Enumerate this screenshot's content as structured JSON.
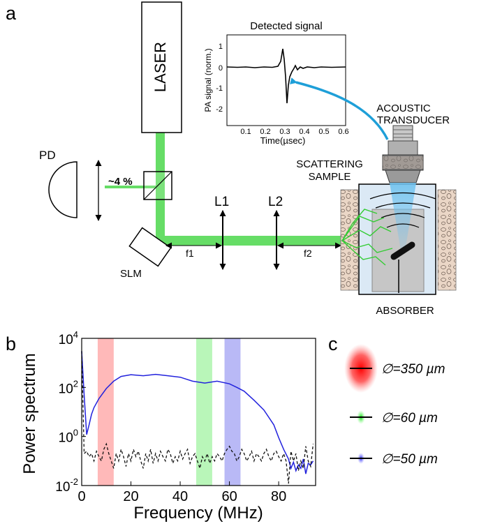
{
  "panels": {
    "a": "a",
    "b": "b",
    "c": "c"
  },
  "setup": {
    "laser": "LASER",
    "pd": "PD",
    "split": "~4 %",
    "slm": "SLM",
    "l1": "L1",
    "l2": "L2",
    "f1": "f1",
    "f2": "f2",
    "transducer_line1": "ACOUSTIC",
    "transducer_line2": "TRANSDUCER",
    "sample_line1": "SCATTERING",
    "sample_line2": "SAMPLE",
    "absorber": "ABSORBER",
    "colors": {
      "beam": "#66dd66",
      "arrow": "#1e9fd8",
      "tissue": "#ead6c6",
      "water": "#dbe9f5"
    }
  },
  "inset": {
    "title": "Detected signal",
    "xlabel": "Time(µsec)",
    "ylabel": "PA signal (norm.)",
    "xticks": [
      "0.1",
      "0.2",
      "0.3",
      "0.4",
      "0.5",
      "0.6"
    ],
    "yticks": [
      "1",
      "0",
      "-1",
      "-2"
    ]
  },
  "legend": {
    "items": [
      {
        "label": "∅=350 µm",
        "color": "#ff2020"
      },
      {
        "label": "∅=60 µm",
        "color": "#22cc22"
      },
      {
        "label": "∅=50 µm",
        "color": "#3030ff"
      }
    ]
  },
  "chart_data": {
    "type": "line",
    "xlabel": "Frequency (MHz)",
    "ylabel": "Power spectrum",
    "xlim": [
      0,
      95
    ],
    "ylim_log10": [
      -2,
      4
    ],
    "xticks": [
      "0",
      "20",
      "40",
      "60",
      "80"
    ],
    "ytick_exponents": [
      "4",
      "2",
      "0",
      "-2"
    ],
    "bands": [
      {
        "from": 6.5,
        "to": 13,
        "color": "#ff8080"
      },
      {
        "from": 46.5,
        "to": 53,
        "color": "#80ee80"
      },
      {
        "from": 58,
        "to": 64.5,
        "color": "#8080ee"
      }
    ],
    "series": [
      {
        "color": "#2222dd",
        "dash": false,
        "x": [
          0,
          1,
          2,
          3,
          4,
          5,
          7,
          10,
          13,
          16,
          20,
          25,
          30,
          35,
          40,
          45,
          50,
          55,
          60,
          63,
          66,
          70,
          74,
          78,
          80,
          82,
          84,
          85,
          86,
          87,
          88,
          89,
          90,
          91,
          92,
          93,
          94
        ],
        "y": [
          3000,
          50,
          1.2,
          3,
          8,
          15,
          35,
          90,
          180,
          280,
          330,
          300,
          340,
          300,
          260,
          180,
          150,
          180,
          140,
          100,
          70,
          30,
          12,
          3,
          0.9,
          0.3,
          0.12,
          0.05,
          0.09,
          0.04,
          0.07,
          0.05,
          0.12,
          0.03,
          0.08,
          0.07,
          0.1
        ]
      },
      {
        "color": "#111111",
        "dash": true,
        "x": [
          0,
          1,
          2,
          3,
          4,
          5,
          6,
          7,
          8,
          9,
          10,
          11,
          12,
          13,
          14,
          15,
          16,
          17,
          18,
          19,
          20,
          21,
          22,
          23,
          24,
          25,
          26,
          27,
          28,
          29,
          30,
          31,
          32,
          33,
          34,
          35,
          36,
          37,
          38,
          39,
          40,
          41,
          42,
          43,
          44,
          45,
          46,
          47,
          48,
          49,
          50,
          51,
          52,
          53,
          54,
          55,
          56,
          57,
          58,
          59,
          60,
          61,
          62,
          63,
          64,
          65,
          66,
          67,
          68,
          69,
          70,
          71,
          72,
          73,
          74,
          75,
          76,
          77,
          78,
          79,
          80,
          81,
          82,
          83,
          84,
          85,
          86,
          87,
          88,
          89,
          90,
          91,
          92,
          93,
          94
        ],
        "y": [
          3000,
          0.2,
          0.25,
          0.15,
          0.2,
          0.1,
          0.25,
          0.15,
          0.1,
          0.3,
          0.5,
          0.2,
          0.1,
          0.05,
          0.2,
          0.1,
          0.3,
          0.15,
          0.06,
          0.2,
          0.1,
          0.3,
          0.15,
          0.25,
          0.1,
          0.05,
          0.2,
          0.1,
          0.3,
          0.08,
          0.2,
          0.1,
          0.25,
          0.15,
          0.1,
          0.3,
          0.2,
          0.08,
          0.15,
          0.1,
          0.25,
          0.12,
          0.2,
          0.3,
          0.08,
          0.15,
          0.2,
          0.1,
          0.05,
          0.15,
          0.1,
          0.2,
          0.08,
          0.15,
          0.1,
          0.2,
          0.15,
          0.1,
          0.2,
          0.3,
          0.4,
          0.25,
          0.2,
          0.1,
          0.15,
          0.3,
          0.2,
          0.1,
          0.15,
          0.25,
          0.1,
          0.2,
          0.15,
          0.1,
          0.2,
          0.3,
          0.15,
          0.1,
          0.2,
          0.25,
          0.15,
          0.1,
          0.2,
          0.1,
          0.012,
          0.25,
          0.1,
          0.2,
          0.04,
          0.1,
          0.05,
          0.4,
          0.1,
          0.06,
          0.5
        ]
      }
    ]
  }
}
